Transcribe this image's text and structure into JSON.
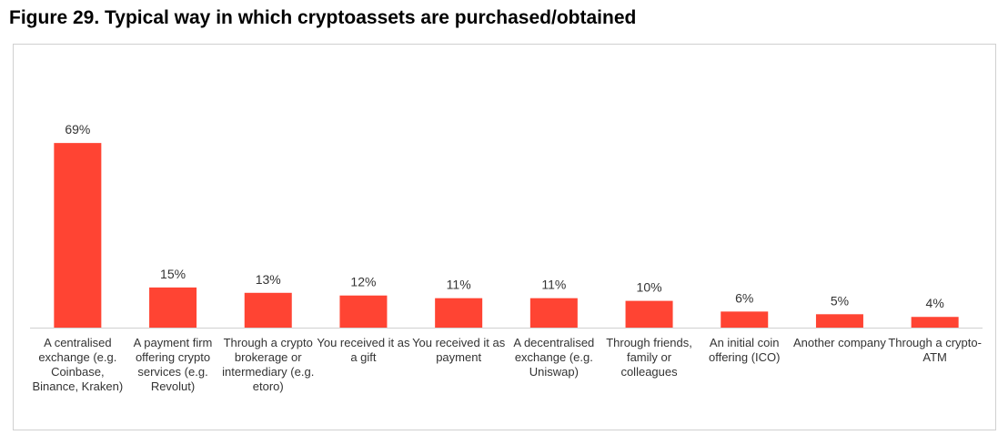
{
  "chart_data": {
    "type": "bar",
    "title": "Figure 29. Typical way in which cryptoassets are purchased/obtained",
    "categories": [
      "A centralised exchange (e.g. Coinbase, Binance, Kraken)",
      "A payment firm offering crypto services (e.g. Revolut)",
      "Through a crypto brokerage or intermediary (e.g. etoro)",
      "You received it as a gift",
      "You received it as payment",
      "A decentralised exchange (e.g. Uniswap)",
      "Through friends, family or colleagues",
      "An initial coin offering (ICO)",
      "Another company",
      "Through a crypto-ATM"
    ],
    "values": [
      69,
      15,
      13,
      12,
      11,
      11,
      10,
      6,
      5,
      4
    ],
    "value_labels": [
      "69%",
      "15%",
      "13%",
      "12%",
      "11%",
      "11%",
      "10%",
      "6%",
      "5%",
      "4%"
    ],
    "color": "#ff4433"
  }
}
